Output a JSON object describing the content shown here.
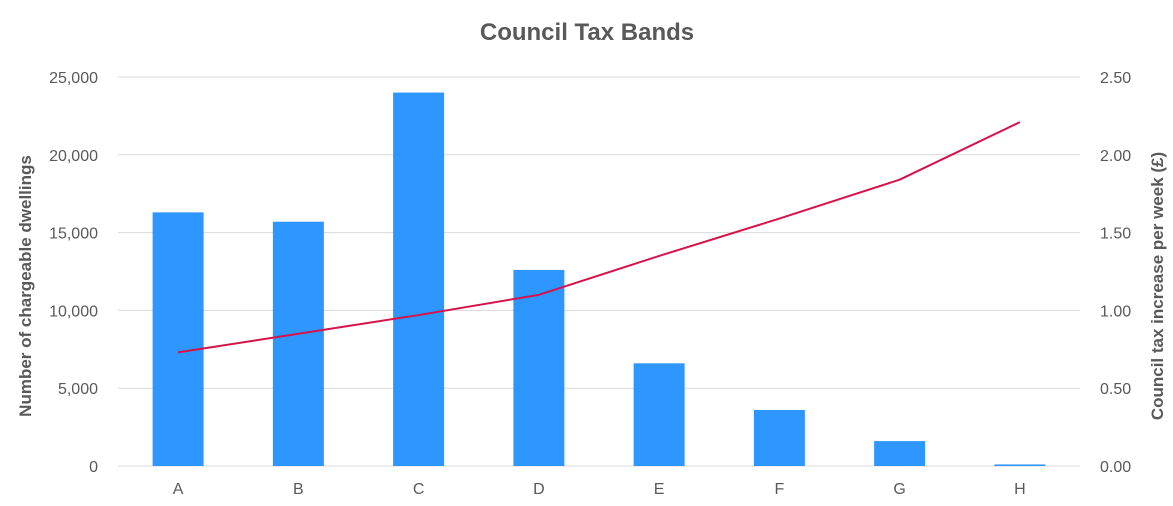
{
  "chart_data": {
    "type": "bar",
    "title": "Council Tax Bands",
    "categories": [
      "A",
      "B",
      "C",
      "D",
      "E",
      "F",
      "G",
      "H"
    ],
    "series": [
      {
        "name": "Number of chargeable dwellings",
        "type": "bar",
        "axis": "left",
        "color": "#2e96ff",
        "values": [
          16300,
          15700,
          24000,
          12600,
          6600,
          3600,
          1600,
          100
        ]
      },
      {
        "name": "Council tax increase per week (£)",
        "type": "line",
        "axis": "right",
        "color": "#d6124b",
        "values": [
          0.73,
          0.85,
          0.97,
          1.1,
          1.35,
          1.59,
          1.84,
          2.21
        ]
      }
    ],
    "y_left": {
      "label": "Number of chargeable dwellings",
      "min": 0,
      "max": 25000,
      "ticks": [
        0,
        5000,
        10000,
        15000,
        20000,
        25000
      ],
      "tick_labels": [
        "0",
        "5,000",
        "10,000",
        "15,000",
        "20,000",
        "25,000"
      ]
    },
    "y_right": {
      "label": "Council tax increase per week (£)",
      "min": 0,
      "max": 2.5,
      "ticks": [
        0,
        0.5,
        1.0,
        1.5,
        2.0,
        2.5
      ],
      "tick_labels": [
        "0.00",
        "0.50",
        "1.00",
        "1.50",
        "2.00",
        "2.50"
      ]
    },
    "grid": true,
    "legend": "none"
  }
}
